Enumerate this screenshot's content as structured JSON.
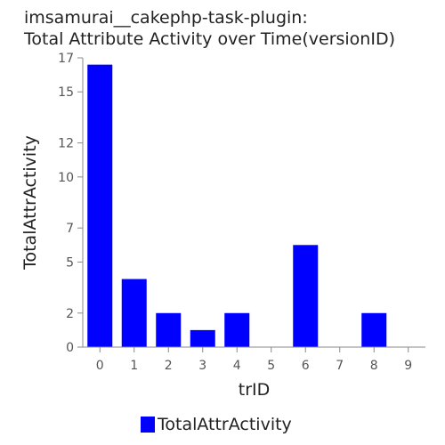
{
  "chart_data": {
    "type": "bar",
    "title_line1": "imsamurai__cakephp-task-plugin:",
    "title_line2": "Total Attribute Activity over Time(versionID)",
    "xlabel": "trID",
    "ylabel": "TotalAttrActivity",
    "categories": [
      "0",
      "1",
      "2",
      "3",
      "4",
      "5",
      "6",
      "7",
      "8",
      "9"
    ],
    "series": [
      {
        "name": "TotalAttrActivity",
        "values": [
          16.6,
          4,
          2,
          1,
          2,
          0,
          6,
          0,
          2,
          0
        ]
      }
    ],
    "yticks": [
      0,
      2,
      5,
      7,
      10,
      12,
      15,
      17
    ],
    "ylim": [
      0,
      17
    ],
    "bar_color": "#0000ff",
    "legend_position": "bottom"
  }
}
